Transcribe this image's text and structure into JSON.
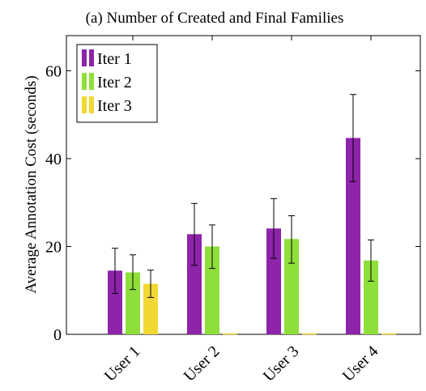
{
  "chart_data": {
    "type": "bar",
    "title": "(a) Number of Created and Final Families",
    "ylabel": "Average Annotation Cost (seconds)",
    "xlabel": "",
    "categories": [
      "User 1",
      "User 2",
      "User 3",
      "User 4"
    ],
    "ylim": [
      0,
      68
    ],
    "yticks": [
      0,
      20,
      40,
      60
    ],
    "grid": false,
    "legend_position": "top-left",
    "series": [
      {
        "name": "Iter 1",
        "color": "#8e24aa",
        "values": [
          14.5,
          22.8,
          24.1,
          44.7
        ],
        "err_low": [
          9.3,
          15.7,
          17.3,
          34.8
        ],
        "err_high": [
          19.6,
          29.8,
          30.9,
          54.6
        ]
      },
      {
        "name": "Iter 2",
        "color": "#8fdf3a",
        "values": [
          14.1,
          20.0,
          21.7,
          16.8
        ],
        "err_low": [
          10.2,
          15.0,
          16.2,
          12.1
        ],
        "err_high": [
          18.1,
          24.9,
          27.0,
          21.5
        ]
      },
      {
        "name": "Iter 3",
        "color": "#f2d832",
        "values": [
          11.5,
          0,
          0,
          0
        ],
        "err_low": [
          8.4,
          0,
          0,
          0
        ],
        "err_high": [
          14.6,
          0,
          0,
          0
        ]
      }
    ]
  }
}
